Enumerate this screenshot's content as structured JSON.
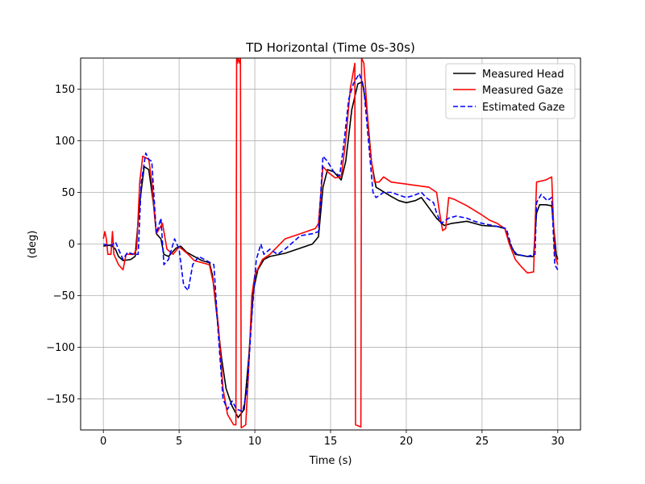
{
  "chart_data": {
    "type": "line",
    "title": "TD Horizontal (Time 0s-30s)",
    "xlabel": "Time (s)",
    "ylabel": "(deg)",
    "xlim": [
      -1.5,
      31.5
    ],
    "ylim": [
      -180,
      180
    ],
    "grid": true,
    "legend_position": "top-right",
    "xticks": [
      0,
      5,
      10,
      15,
      20,
      25,
      30
    ],
    "xtick_labels": [
      "0",
      "5",
      "10",
      "15",
      "20",
      "25",
      "30"
    ],
    "yticks": [
      -150,
      -100,
      -50,
      0,
      50,
      100,
      150
    ],
    "ytick_labels": [
      "−150",
      "−100",
      "−50",
      "0",
      "50",
      "100",
      "150"
    ],
    "series": [
      {
        "name": "Measured Head",
        "color": "#000000",
        "dash": "solid",
        "points": [
          [
            0,
            -2
          ],
          [
            0.5,
            -1
          ],
          [
            0.8,
            -5
          ],
          [
            1.0,
            -12
          ],
          [
            1.3,
            -16
          ],
          [
            1.8,
            -15
          ],
          [
            2.1,
            -12
          ],
          [
            2.4,
            40
          ],
          [
            2.7,
            75
          ],
          [
            3.0,
            72
          ],
          [
            3.3,
            40
          ],
          [
            3.5,
            10
          ],
          [
            3.8,
            5
          ],
          [
            4.0,
            -10
          ],
          [
            4.3,
            -12
          ],
          [
            4.8,
            -4
          ],
          [
            5.1,
            -2
          ],
          [
            5.5,
            -8
          ],
          [
            6.0,
            -12
          ],
          [
            6.5,
            -16
          ],
          [
            7.0,
            -18
          ],
          [
            7.2,
            -30
          ],
          [
            7.5,
            -70
          ],
          [
            7.8,
            -110
          ],
          [
            8.1,
            -140
          ],
          [
            8.5,
            -157
          ],
          [
            8.9,
            -168
          ],
          [
            9.3,
            -160
          ],
          [
            9.6,
            -110
          ],
          [
            9.9,
            -45
          ],
          [
            10.2,
            -25
          ],
          [
            10.6,
            -15
          ],
          [
            11.0,
            -12
          ],
          [
            12.0,
            -9
          ],
          [
            13.0,
            -4
          ],
          [
            13.8,
            0
          ],
          [
            14.2,
            7
          ],
          [
            14.5,
            55
          ],
          [
            14.8,
            72
          ],
          [
            15.2,
            70
          ],
          [
            15.7,
            62
          ],
          [
            16.0,
            80
          ],
          [
            16.4,
            130
          ],
          [
            16.8,
            155
          ],
          [
            17.1,
            157
          ],
          [
            17.4,
            130
          ],
          [
            17.7,
            80
          ],
          [
            18.0,
            55
          ],
          [
            19.0,
            46
          ],
          [
            19.5,
            42
          ],
          [
            20.0,
            40
          ],
          [
            20.6,
            42
          ],
          [
            21.0,
            45
          ],
          [
            21.5,
            35
          ],
          [
            22.0,
            25
          ],
          [
            22.5,
            18
          ],
          [
            23.0,
            20
          ],
          [
            24.0,
            22
          ],
          [
            25.0,
            18
          ],
          [
            26.0,
            17
          ],
          [
            26.5,
            15
          ],
          [
            26.8,
            2
          ],
          [
            27.2,
            -10
          ],
          [
            28.0,
            -12
          ],
          [
            28.4,
            -12
          ],
          [
            28.6,
            30
          ],
          [
            28.8,
            38
          ],
          [
            29.2,
            38
          ],
          [
            29.6,
            37
          ],
          [
            29.9,
            -10
          ],
          [
            30.0,
            -15
          ]
        ]
      },
      {
        "name": "Measured Gaze",
        "color": "#ff0000",
        "dash": "solid",
        "points": [
          [
            0,
            5
          ],
          [
            0.1,
            12
          ],
          [
            0.2,
            5
          ],
          [
            0.3,
            -10
          ],
          [
            0.5,
            -10
          ],
          [
            0.6,
            12
          ],
          [
            0.7,
            -10
          ],
          [
            1.0,
            -20
          ],
          [
            1.3,
            -25
          ],
          [
            1.5,
            -10
          ],
          [
            2.0,
            -10
          ],
          [
            2.2,
            -5
          ],
          [
            2.4,
            60
          ],
          [
            2.6,
            85
          ],
          [
            3.0,
            82
          ],
          [
            3.2,
            60
          ],
          [
            3.5,
            10
          ],
          [
            3.7,
            15
          ],
          [
            3.9,
            20
          ],
          [
            4.2,
            -5
          ],
          [
            4.6,
            -10
          ],
          [
            5.0,
            -3
          ],
          [
            5.2,
            -5
          ],
          [
            5.6,
            -10
          ],
          [
            6.0,
            -16
          ],
          [
            6.5,
            -18
          ],
          [
            7.0,
            -20
          ],
          [
            7.3,
            -40
          ],
          [
            7.6,
            -80
          ],
          [
            7.9,
            -140
          ],
          [
            8.2,
            -165
          ],
          [
            8.6,
            -175
          ],
          [
            8.75,
            -175
          ],
          [
            8.8,
            180
          ],
          [
            8.85,
            175
          ],
          [
            8.9,
            180
          ],
          [
            9.0,
            175
          ],
          [
            9.05,
            180
          ],
          [
            9.1,
            -178
          ],
          [
            9.4,
            -175
          ],
          [
            9.6,
            -120
          ],
          [
            9.8,
            -50
          ],
          [
            10.0,
            -30
          ],
          [
            10.5,
            -15
          ],
          [
            11.0,
            -10
          ],
          [
            12.0,
            5
          ],
          [
            13.0,
            10
          ],
          [
            14.0,
            15
          ],
          [
            14.2,
            20
          ],
          [
            14.5,
            75
          ],
          [
            14.8,
            70
          ],
          [
            15.3,
            64
          ],
          [
            15.7,
            65
          ],
          [
            16.0,
            100
          ],
          [
            16.3,
            150
          ],
          [
            16.6,
            175
          ],
          [
            16.65,
            -175
          ],
          [
            17.0,
            -177
          ],
          [
            17.05,
            180
          ],
          [
            17.2,
            175
          ],
          [
            17.5,
            110
          ],
          [
            17.7,
            80
          ],
          [
            17.9,
            60
          ],
          [
            18.2,
            60
          ],
          [
            18.5,
            65
          ],
          [
            19.0,
            60
          ],
          [
            20.0,
            58
          ],
          [
            21.0,
            56
          ],
          [
            21.5,
            55
          ],
          [
            22.0,
            50
          ],
          [
            22.2,
            30
          ],
          [
            22.4,
            13
          ],
          [
            22.6,
            15
          ],
          [
            22.8,
            45
          ],
          [
            23.2,
            43
          ],
          [
            24.0,
            37
          ],
          [
            25.0,
            28
          ],
          [
            25.5,
            23
          ],
          [
            26.0,
            20
          ],
          [
            26.5,
            15
          ],
          [
            26.8,
            0
          ],
          [
            27.2,
            -15
          ],
          [
            27.6,
            -22
          ],
          [
            28.0,
            -28
          ],
          [
            28.4,
            -27
          ],
          [
            28.6,
            60
          ],
          [
            29.2,
            62
          ],
          [
            29.6,
            65
          ],
          [
            29.8,
            -10
          ],
          [
            30.0,
            -20
          ]
        ]
      },
      {
        "name": "Estimated Gaze",
        "color": "#0000ff",
        "dash": "dashed",
        "points": [
          [
            0,
            0
          ],
          [
            0.5,
            -2
          ],
          [
            0.8,
            2
          ],
          [
            1.0,
            -5
          ],
          [
            1.3,
            -15
          ],
          [
            1.6,
            -8
          ],
          [
            2.0,
            -10
          ],
          [
            2.3,
            -10
          ],
          [
            2.5,
            60
          ],
          [
            2.8,
            88
          ],
          [
            3.0,
            82
          ],
          [
            3.2,
            80
          ],
          [
            3.5,
            10
          ],
          [
            3.8,
            25
          ],
          [
            4.0,
            -20
          ],
          [
            4.3,
            -15
          ],
          [
            4.7,
            5
          ],
          [
            5.0,
            -5
          ],
          [
            5.3,
            -40
          ],
          [
            5.6,
            -45
          ],
          [
            5.9,
            -20
          ],
          [
            6.3,
            -12
          ],
          [
            6.8,
            -16
          ],
          [
            7.3,
            -20
          ],
          [
            7.6,
            -90
          ],
          [
            7.9,
            -150
          ],
          [
            8.2,
            -160
          ],
          [
            8.5,
            -152
          ],
          [
            8.8,
            -160
          ],
          [
            9.2,
            -162
          ],
          [
            9.5,
            -140
          ],
          [
            9.8,
            -70
          ],
          [
            10.1,
            -15
          ],
          [
            10.4,
            0
          ],
          [
            10.6,
            -10
          ],
          [
            11.0,
            -5
          ],
          [
            11.5,
            -10
          ],
          [
            12.0,
            -5
          ],
          [
            13.0,
            8
          ],
          [
            13.8,
            10
          ],
          [
            14.2,
            12
          ],
          [
            14.5,
            85
          ],
          [
            14.8,
            80
          ],
          [
            15.2,
            70
          ],
          [
            15.6,
            66
          ],
          [
            15.9,
            100
          ],
          [
            16.2,
            140
          ],
          [
            16.5,
            155
          ],
          [
            16.9,
            165
          ],
          [
            17.2,
            150
          ],
          [
            17.5,
            100
          ],
          [
            17.8,
            50
          ],
          [
            18.0,
            45
          ],
          [
            18.5,
            50
          ],
          [
            19.0,
            50
          ],
          [
            20.0,
            45
          ],
          [
            20.5,
            47
          ],
          [
            21.0,
            50
          ],
          [
            21.3,
            45
          ],
          [
            21.8,
            40
          ],
          [
            22.0,
            30
          ],
          [
            22.3,
            20
          ],
          [
            22.8,
            25
          ],
          [
            23.3,
            27
          ],
          [
            24.0,
            25
          ],
          [
            24.5,
            22
          ],
          [
            25.0,
            20
          ],
          [
            26.0,
            17
          ],
          [
            26.6,
            15
          ],
          [
            27.0,
            -5
          ],
          [
            27.3,
            -10
          ],
          [
            28.0,
            -12
          ],
          [
            28.5,
            -10
          ],
          [
            28.6,
            40
          ],
          [
            28.9,
            48
          ],
          [
            29.3,
            42
          ],
          [
            29.6,
            45
          ],
          [
            29.8,
            -20
          ],
          [
            30.0,
            -25
          ]
        ]
      }
    ]
  }
}
